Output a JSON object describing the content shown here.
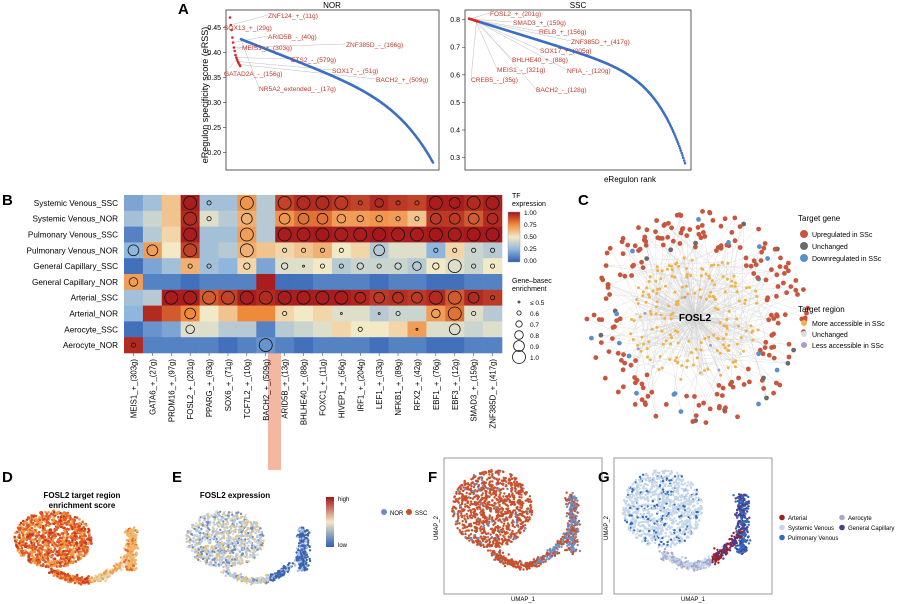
{
  "panel_letters": {
    "A": "A",
    "B": "B",
    "C": "C",
    "D": "D",
    "E": "E",
    "F": "F",
    "G": "G"
  },
  "colors": {
    "red": "#d62728",
    "blue": "#3a6fc4",
    "anno": "#c0392b",
    "up": "#c8553d",
    "unchanged_gene": "#6b6b6b",
    "down": "#5b8fc9",
    "more": "#f0b34a",
    "unchanged_region": "#dcdcdc",
    "less": "#a99bd0",
    "nor": "#6b8fc4",
    "ssc": "#c8502c",
    "arterial": "#a01f1f",
    "systemic": "#c5d5ea",
    "pulmonary": "#2e6cbf",
    "aerocyte": "#a8a8cf",
    "capillary": "#4b3b8f"
  },
  "chart_data": [
    {
      "type": "scatter",
      "panel": "A-left",
      "title": "NOR",
      "ylabel": "eRegulon specificity score (eRSS)",
      "xlabel": "",
      "yticks": [
        "0.45",
        "0.40",
        "0.35",
        "0.30",
        "0.25",
        "0.20"
      ],
      "ylim": [
        0.165,
        0.485
      ],
      "n_points": 260,
      "y_start": 0.47,
      "y_end": 0.18,
      "top_points": [
        0.47,
        0.455,
        0.445,
        0.43,
        0.42,
        0.41,
        0.403,
        0.395,
        0.39,
        0.386,
        0.382,
        0.379,
        0.376,
        0.373
      ],
      "annotations": [
        {
          "label": "ZNF124_+_(11g)",
          "rank": 1
        },
        {
          "label": "SOX13_+_(29g)",
          "rank": 2
        },
        {
          "label": "ARID5B_-_(40g)",
          "rank": 4
        },
        {
          "label": "ZNF385D_-_(166g)",
          "rank": 5
        },
        {
          "label": "MEIS1_+_(303g)",
          "rank": 6
        },
        {
          "label": "ETS2_-_(579g)",
          "rank": 8
        },
        {
          "label": "SOX17_-_(51g)",
          "rank": 10
        },
        {
          "label": "GATAD2A_-_(156g)",
          "rank": 9
        },
        {
          "label": "BACH2_+_(509g)",
          "rank": 12
        },
        {
          "label": "NR5A2_extended_-_(17g)",
          "rank": 14
        }
      ]
    },
    {
      "type": "scatter",
      "panel": "A-right",
      "title": "SSC",
      "xlabel": "eRegulon rank",
      "yticks": [
        "0.8",
        "0.7",
        "0.6",
        "0.5",
        "0.4",
        "0.3"
      ],
      "ylim": [
        0.255,
        0.835
      ],
      "n_points": 260,
      "y_start": 0.82,
      "y_end": 0.28,
      "annotations": [
        {
          "label": "FOSL2_+_(201g)",
          "rank": 1
        },
        {
          "label": "SMAD3_+_(159g)",
          "rank": 2
        },
        {
          "label": "RELB_+_(156g)",
          "rank": 3
        },
        {
          "label": "ZNF385D_+_(417g)",
          "rank": 4
        },
        {
          "label": "SOX17_+_(205g)",
          "rank": 5
        },
        {
          "label": "BHLHE40_+_(88g)",
          "rank": 6
        },
        {
          "label": "NFIA_-_(120g)",
          "rank": 7
        },
        {
          "label": "MEIS1_-_(321g)",
          "rank": 8
        },
        {
          "label": "CREB5_-_(35g)",
          "rank": 9
        },
        {
          "label": "BACH2_-_(128g)",
          "rank": 10
        }
      ]
    },
    {
      "type": "heatmap",
      "panel": "B",
      "rows": [
        "Systemic Venous_SSC",
        "Systemic Venous_NOR",
        "Pulmonary Venous_SSC",
        "Pulmonary Venous_NOR",
        "General Capillary_SSC",
        "General Capillary_NOR",
        "Arterial_SSC",
        "Arterial_NOR",
        "Aerocyte_SSC",
        "Aerocyte_NOR"
      ],
      "columns": [
        "MEIS1_+_(303g)",
        "GATA6_+_(27g)",
        "PRDM16_+_(97g)",
        "FOSL2_+_(201g)",
        "PPARG_+_(93g)",
        "SOX6_+_(71g)",
        "TCF7L2_+_(10g)",
        "BACH2_+_(509g)",
        "ARID5B_+_(13g)",
        "BHLHE40_+_(88g)",
        "FOXC1_+_(11g)",
        "HIVEP1_+_(56g)",
        "IRF1_+_(204g)",
        "LEF1_+_(33g)",
        "NFKB1_+_(89g)",
        "RFX2_+_(42g)",
        "EBF1_+_(76g)",
        "EBF3_+_(12g)",
        "SMAD3_+_(159g)",
        "ZNF385D_+_(417g)"
      ],
      "highlight_column": "FOSL2_+_(201g)",
      "expression": [
        [
          0.2,
          0.3,
          0.6,
          0.98,
          0.3,
          0.3,
          0.72,
          0.35,
          0.9,
          0.95,
          0.95,
          0.92,
          0.9,
          0.95,
          0.92,
          0.9,
          0.98,
          0.98,
          0.95,
          0.98
        ],
        [
          0.3,
          0.4,
          0.6,
          0.95,
          0.45,
          0.35,
          0.65,
          0.35,
          0.72,
          0.8,
          0.8,
          0.7,
          0.7,
          0.72,
          0.7,
          0.6,
          0.92,
          0.92,
          0.85,
          0.95
        ],
        [
          0.1,
          0.35,
          0.55,
          0.98,
          0.3,
          0.3,
          0.7,
          0.35,
          0.98,
          0.98,
          0.99,
          0.98,
          0.98,
          0.99,
          0.98,
          0.98,
          0.99,
          0.98,
          0.99,
          0.99
        ],
        [
          0.25,
          0.7,
          0.5,
          0.9,
          0.3,
          0.35,
          0.65,
          0.6,
          0.55,
          0.6,
          0.65,
          0.5,
          0.55,
          0.35,
          0.45,
          0.45,
          0.25,
          0.55,
          0.4,
          0.35
        ],
        [
          0.05,
          0.2,
          0.3,
          0.65,
          0.3,
          0.25,
          0.55,
          0.2,
          0.45,
          0.45,
          0.5,
          0.35,
          0.4,
          0.4,
          0.4,
          0.35,
          0.5,
          0.45,
          0.4,
          0.5
        ],
        [
          0.7,
          0.1,
          0.1,
          0.05,
          0.1,
          0.1,
          0.1,
          0.98,
          0.05,
          0.05,
          0.1,
          0.1,
          0.1,
          0.05,
          0.1,
          0.1,
          0.05,
          0.05,
          0.1,
          0.1
        ],
        [
          0.3,
          0.35,
          0.98,
          0.98,
          0.85,
          0.9,
          0.98,
          0.95,
          0.98,
          0.98,
          0.98,
          0.98,
          0.96,
          0.92,
          0.94,
          0.92,
          0.95,
          0.85,
          0.95,
          0.92
        ],
        [
          0.25,
          0.95,
          0.85,
          0.75,
          0.5,
          0.6,
          0.75,
          0.75,
          0.55,
          0.5,
          0.55,
          0.45,
          0.45,
          0.35,
          0.4,
          0.4,
          0.7,
          0.8,
          0.45,
          0.35
        ],
        [
          0.05,
          0.15,
          0.2,
          0.45,
          0.45,
          0.35,
          0.35,
          0.1,
          0.35,
          0.4,
          0.45,
          0.55,
          0.5,
          0.5,
          0.55,
          0.7,
          0.45,
          0.45,
          0.4,
          0.45
        ],
        [
          0.95,
          0.1,
          0.1,
          0.1,
          0.1,
          0.05,
          0.1,
          0.15,
          0.1,
          0.05,
          0.1,
          0.1,
          0.1,
          0.05,
          0.1,
          0.1,
          0.05,
          0.05,
          0.1,
          0.1
        ]
      ],
      "enrichment": [
        [
          0,
          0,
          0,
          1.0,
          0.6,
          0,
          1.0,
          0,
          1.0,
          1.0,
          1.0,
          1.0,
          0.6,
          0.8,
          0.6,
          0.6,
          1.0,
          0.9,
          1.0,
          1.0
        ],
        [
          0,
          0,
          0,
          1.0,
          0.6,
          0,
          0.9,
          0,
          0.9,
          0.9,
          0.9,
          0.8,
          0.7,
          0.7,
          0.6,
          0.6,
          0.9,
          0.9,
          0.9,
          0.9
        ],
        [
          0,
          0,
          0,
          1.0,
          0,
          0,
          1.0,
          0,
          1.0,
          1.0,
          1.0,
          1.0,
          1.0,
          1.0,
          1.0,
          1.0,
          1.0,
          1.0,
          1.0,
          1.0
        ],
        [
          0.9,
          0.9,
          0,
          1.0,
          0,
          0,
          1.0,
          0,
          0.6,
          0.6,
          0.6,
          0.6,
          0,
          0.9,
          0,
          0,
          0.6,
          0.6,
          0.6,
          0.6
        ],
        [
          0,
          0,
          0,
          0.6,
          0.6,
          0,
          0.7,
          0,
          0.7,
          0.5,
          0.6,
          0.6,
          0.7,
          0.6,
          0.7,
          0.8,
          0.7,
          1.0,
          0.6,
          0.6
        ],
        [
          0.8,
          0,
          0,
          0,
          0,
          0,
          0,
          0,
          0,
          0,
          0,
          0,
          0,
          0,
          0,
          0,
          0,
          0,
          0,
          0
        ],
        [
          0,
          0,
          1.0,
          1.0,
          1.0,
          1.0,
          1.0,
          1.0,
          1.0,
          1.0,
          1.0,
          1.0,
          0.9,
          0.9,
          0.9,
          0.9,
          1.0,
          1.0,
          0.9,
          0.6
        ],
        [
          0,
          0,
          0,
          0.9,
          0,
          0,
          0,
          0,
          0.6,
          0,
          0,
          0.5,
          0,
          0.5,
          0.6,
          0,
          0.8,
          1.0,
          0.6,
          0
        ],
        [
          0,
          0,
          0,
          0.8,
          0,
          0,
          0,
          0,
          0,
          0,
          0,
          0,
          0.6,
          0,
          0,
          0.5,
          0,
          0.9,
          0,
          0
        ],
        [
          0.6,
          0,
          0,
          0,
          0,
          0,
          0,
          1.0,
          0,
          0,
          0,
          0,
          0,
          0,
          0,
          0,
          0,
          0,
          0,
          0
        ]
      ],
      "colorbar_title": "TF\nexpression",
      "colorbar_ticks": [
        "1.00",
        "0.75",
        "0.50",
        "0.25",
        "0.00"
      ],
      "size_legend_title": "Gene–basec\nenrichment",
      "size_legend": [
        "≤ 0.5",
        "0.6",
        "0.7",
        "0.8",
        "0.9",
        "1.0"
      ]
    }
  ],
  "panel_C": {
    "center": "FOSL2",
    "gene_legend_title": "Target gene",
    "gene_legend": [
      "Upregulated in SSc",
      "Unchanged",
      "Downregulated in SSc"
    ],
    "region_legend_title": "Target region",
    "region_legend": [
      "More accessible in SSc",
      "Unchanged",
      "Less accessible in SSc"
    ]
  },
  "panel_D": {
    "title": "FOSL2 target region\nenrichment score"
  },
  "panel_E": {
    "title": "FOSL2 expression",
    "high": "high",
    "low": "low"
  },
  "panel_F": {
    "legend": [
      "NOR",
      "SSC"
    ],
    "xlabel": "UMAP_1",
    "ylabel": "UMAP_2"
  },
  "panel_G": {
    "legend": [
      "Arterial",
      "Aerocyte",
      "Systemic Venous",
      "General Capillary",
      "Pulmonary Venous"
    ],
    "xlabel": "UMAP_1",
    "ylabel": "UMAP_2"
  }
}
